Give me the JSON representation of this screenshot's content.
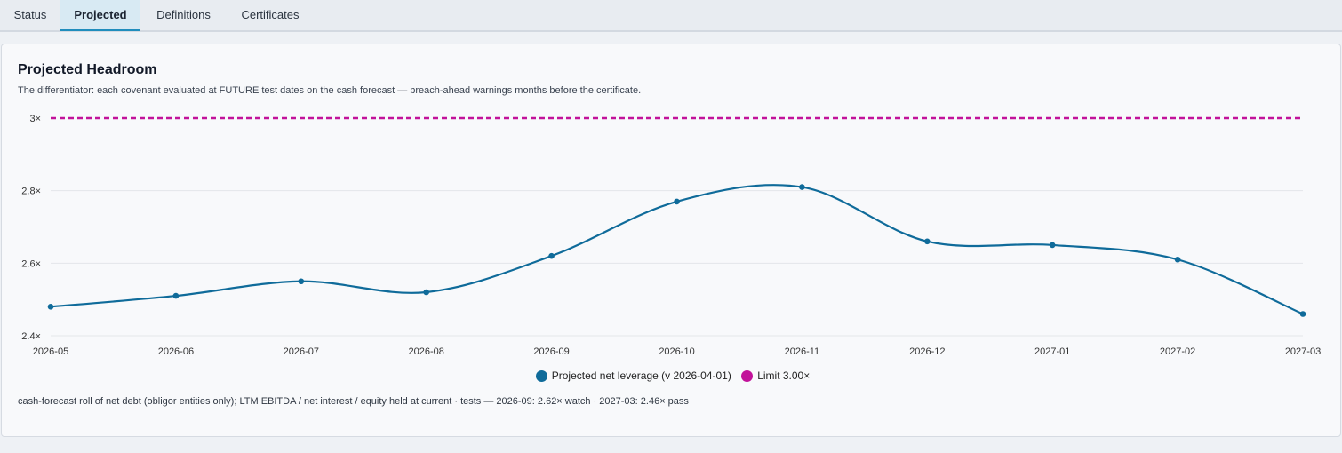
{
  "tabs": [
    {
      "label": "Status",
      "active": false
    },
    {
      "label": "Projected",
      "active": true
    },
    {
      "label": "Definitions",
      "active": false
    },
    {
      "label": "Certificates",
      "active": false
    }
  ],
  "card": {
    "title": "Projected Headroom",
    "subtitle": "The differentiator: each covenant evaluated at FUTURE test dates on the cash forecast — breach-ahead warnings months before the certificate.",
    "footnote": "cash-forecast roll of net debt (obligor entities only); LTM EBITDA / net interest / equity held at current · tests — 2026-09: 2.62× watch · 2027-03: 2.46× pass"
  },
  "colors": {
    "series": "#0f6b9a",
    "limit": "#c2129a",
    "grid": "#e3e6ea"
  },
  "chart_data": {
    "type": "line",
    "x": [
      "2026-05",
      "2026-06",
      "2026-07",
      "2026-08",
      "2026-09",
      "2026-10",
      "2026-11",
      "2026-12",
      "2027-01",
      "2027-02",
      "2027-03"
    ],
    "series": [
      {
        "name": "Projected net leverage (v 2026-04-01)",
        "values": [
          2.48,
          2.51,
          2.55,
          2.52,
          2.62,
          2.77,
          2.81,
          2.66,
          2.65,
          2.61,
          2.46
        ]
      },
      {
        "name": "Limit 3.00×",
        "values": [
          3.0,
          3.0,
          3.0,
          3.0,
          3.0,
          3.0,
          3.0,
          3.0,
          3.0,
          3.0,
          3.0
        ],
        "style": "dashed"
      }
    ],
    "y_ticks": [
      {
        "value": 2.4,
        "label": "2.4×"
      },
      {
        "value": 2.6,
        "label": "2.6×"
      },
      {
        "value": 2.8,
        "label": "2.8×"
      },
      {
        "value": 3.0,
        "label": "3×"
      }
    ],
    "ylim": [
      2.4,
      3.0
    ],
    "grid": true,
    "legend": "bottom"
  }
}
